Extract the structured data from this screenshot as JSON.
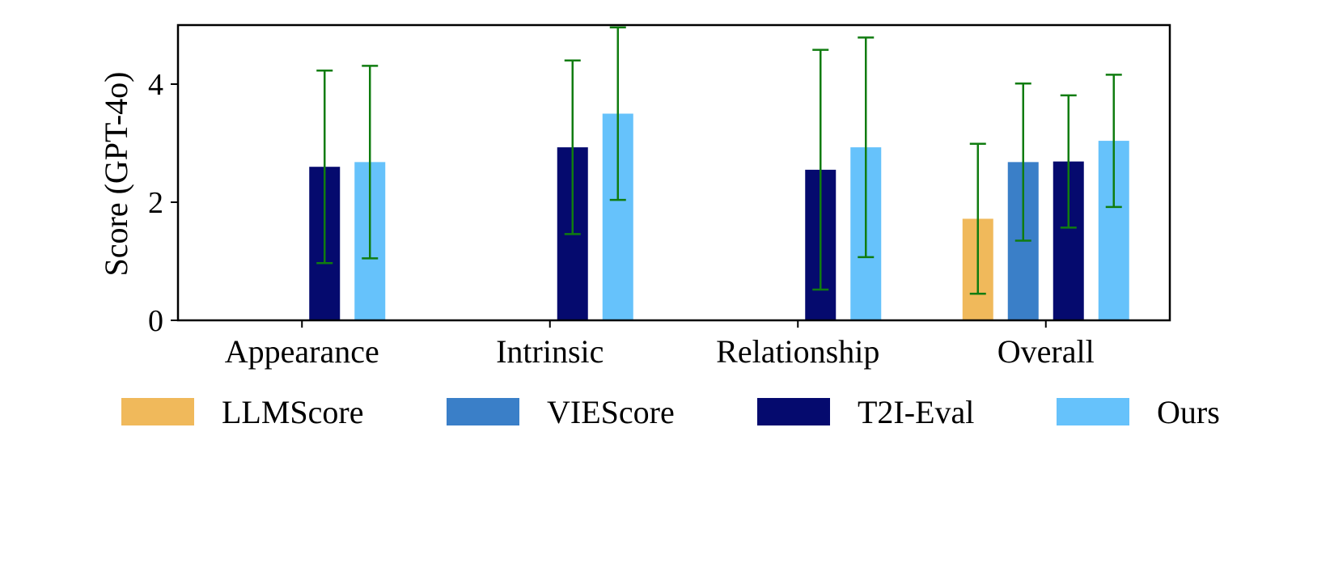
{
  "chart_data": {
    "type": "bar",
    "title": "",
    "xlabel": "",
    "ylabel": "Score (GPT-4o)",
    "ylim": [
      0,
      5
    ],
    "yticks": [
      0,
      2,
      4
    ],
    "grid": false,
    "legend_position": "bottom",
    "categories": [
      "Appearance",
      "Intrinsic",
      "Relationship",
      "Overall"
    ],
    "error_bar_color": "#107c10",
    "series": [
      {
        "name": "LLMScore",
        "color": "#f0b95b",
        "values": [
          0,
          0,
          0,
          1.72
        ],
        "errors": [
          null,
          null,
          null,
          1.27
        ]
      },
      {
        "name": "VIEScore",
        "color": "#3a7fc8",
        "values": [
          0,
          0,
          0,
          2.68
        ],
        "errors": [
          null,
          null,
          null,
          1.33
        ]
      },
      {
        "name": "T2I-Eval",
        "color": "#050a6e",
        "values": [
          2.6,
          2.93,
          2.55,
          2.69
        ],
        "errors": [
          1.63,
          1.47,
          2.03,
          1.12
        ]
      },
      {
        "name": "Ours",
        "color": "#66c2fb",
        "values": [
          2.68,
          3.5,
          2.93,
          3.04
        ],
        "errors": [
          1.63,
          1.46,
          1.86,
          1.12
        ]
      }
    ]
  }
}
